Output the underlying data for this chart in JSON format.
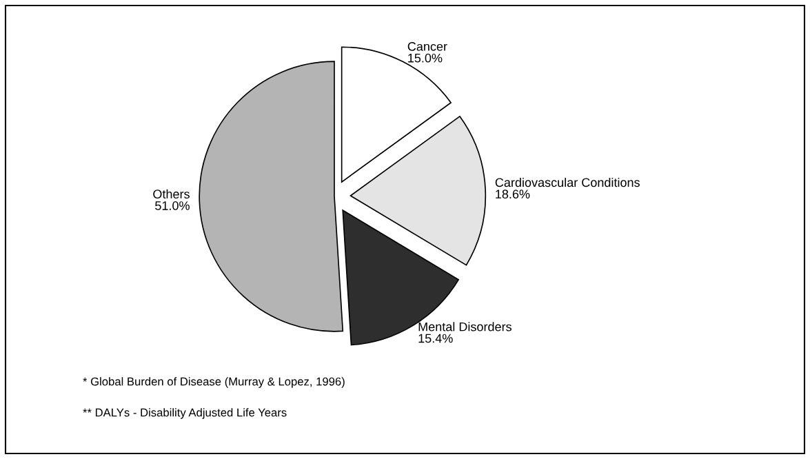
{
  "chart_data": {
    "type": "pie",
    "categories": [
      "Cancer",
      "Cardiovascular Conditions",
      "Mental Disorders",
      "Others"
    ],
    "values": [
      15.0,
      18.6,
      15.4,
      51.0
    ],
    "colors": [
      "#ffffff",
      "#e4e4e4",
      "#2e2e2e",
      "#b4b4b4"
    ],
    "value_labels": [
      "15.0%",
      "18.6%",
      "15.4%",
      "51.0%"
    ],
    "annotations": [
      "* Global Burden of Disease (Murray & Lopez, 1996)",
      "** DALYs - Disability Adjusted Life Years"
    ]
  }
}
